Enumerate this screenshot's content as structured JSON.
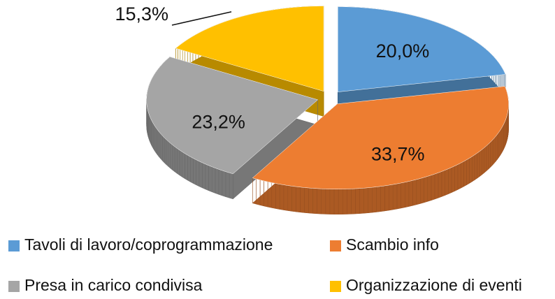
{
  "chart_data": {
    "type": "pie",
    "categories": [
      "Tavoli di lavoro/coprogrammazione",
      "Scambio info",
      "Presa in carico condivisa",
      "Organizzazione di eventi"
    ],
    "values": [
      20.0,
      33.7,
      23.2,
      15.3
    ],
    "value_labels": [
      "20,0%",
      "33,7%",
      "23,2%",
      "15,3%"
    ],
    "colors": [
      "#5b9bd5",
      "#ed7d31",
      "#a5a5a5",
      "#ffc000"
    ],
    "legend": "bottom"
  }
}
